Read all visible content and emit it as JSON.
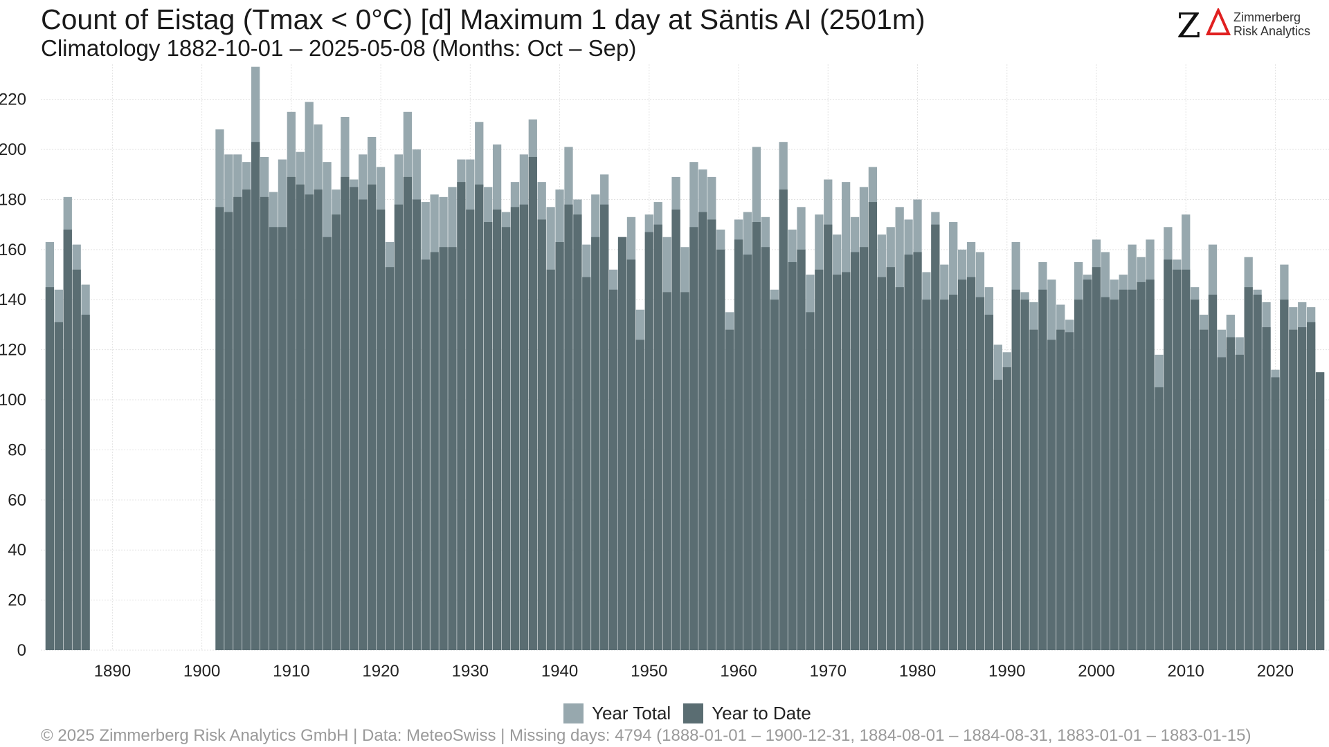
{
  "title": "Count of Eistag (Tmax < 0°C) [d] Maximum 1 day at Säntis  AI (2501m)",
  "subtitle": "Climatology 1882-10-01 – 2025-05-08 (Months: Oct – Sep)",
  "logo": {
    "line1": "Zimmerberg",
    "line2": "Risk Analytics",
    "letter": "Z",
    "mark_color": "#e02020"
  },
  "footer": "©  2025 Zimmerberg Risk Analytics GmbH | Data: MeteoSwiss | Missing days: 4794 (1888-01-01 – 1900-12-31, 1884-08-01 – 1884-08-31, 1883-01-01 – 1883-01-15)",
  "legend": [
    {
      "label": "Year Total",
      "color": "#97a8ae"
    },
    {
      "label": "Year to Date",
      "color": "#5a6d72"
    }
  ],
  "chart_data": {
    "type": "bar",
    "grid": true,
    "legend_position": "bottom",
    "xlim": [
      1882,
      2026
    ],
    "ylim": [
      0,
      234
    ],
    "x_ticks": [
      1890,
      1900,
      1910,
      1920,
      1930,
      1940,
      1950,
      1960,
      1970,
      1980,
      1990,
      2000,
      2010,
      2020
    ],
    "y_ticks": [
      0,
      20,
      40,
      60,
      80,
      100,
      120,
      140,
      160,
      180,
      200,
      220
    ],
    "years": [
      1883,
      1884,
      1885,
      1886,
      1887,
      1902,
      1903,
      1904,
      1905,
      1906,
      1907,
      1908,
      1909,
      1910,
      1911,
      1912,
      1913,
      1914,
      1915,
      1916,
      1917,
      1918,
      1919,
      1920,
      1921,
      1922,
      1923,
      1924,
      1925,
      1926,
      1927,
      1928,
      1929,
      1930,
      1931,
      1932,
      1933,
      1934,
      1935,
      1936,
      1937,
      1938,
      1939,
      1940,
      1941,
      1942,
      1943,
      1944,
      1945,
      1946,
      1947,
      1948,
      1949,
      1950,
      1951,
      1952,
      1953,
      1954,
      1955,
      1956,
      1957,
      1958,
      1959,
      1960,
      1961,
      1962,
      1963,
      1964,
      1965,
      1966,
      1967,
      1968,
      1969,
      1970,
      1971,
      1972,
      1973,
      1974,
      1975,
      1976,
      1977,
      1978,
      1979,
      1980,
      1981,
      1982,
      1983,
      1984,
      1985,
      1986,
      1987,
      1988,
      1989,
      1990,
      1991,
      1992,
      1993,
      1994,
      1995,
      1996,
      1997,
      1998,
      1999,
      2000,
      2001,
      2002,
      2003,
      2004,
      2005,
      2006,
      2007,
      2008,
      2009,
      2010,
      2011,
      2012,
      2013,
      2014,
      2015,
      2016,
      2017,
      2018,
      2019,
      2020,
      2021,
      2022,
      2023,
      2024,
      2025
    ],
    "series": [
      {
        "name": "Year Total",
        "values": [
          163,
          144,
          181,
          162,
          146,
          208,
          198,
          198,
          195,
          233,
          197,
          183,
          196,
          215,
          199,
          219,
          210,
          195,
          184,
          213,
          188,
          198,
          205,
          193,
          163,
          198,
          215,
          200,
          179,
          182,
          181,
          185,
          196,
          196,
          211,
          185,
          202,
          175,
          187,
          198,
          212,
          187,
          177,
          184,
          201,
          180,
          162,
          182,
          190,
          152,
          165,
          173,
          136,
          174,
          179,
          165,
          189,
          161,
          195,
          192,
          189,
          168,
          135,
          172,
          175,
          201,
          173,
          144,
          203,
          168,
          177,
          150,
          174,
          188,
          166,
          187,
          173,
          185,
          193,
          166,
          169,
          177,
          172,
          180,
          151,
          175,
          154,
          171,
          160,
          163,
          159,
          145,
          122,
          119,
          163,
          143,
          139,
          155,
          148,
          138,
          132,
          155,
          150,
          164,
          159,
          148,
          150,
          162,
          157,
          164,
          118,
          169,
          156,
          174,
          145,
          134,
          162,
          128,
          134,
          125,
          157,
          144,
          139,
          112,
          154,
          137,
          139,
          137,
          111
        ]
      },
      {
        "name": "Year to Date",
        "values": [
          145,
          131,
          168,
          152,
          134,
          177,
          175,
          181,
          184,
          203,
          181,
          169,
          169,
          189,
          186,
          182,
          184,
          165,
          174,
          189,
          185,
          180,
          186,
          176,
          153,
          178,
          189,
          180,
          156,
          159,
          161,
          161,
          187,
          176,
          186,
          171,
          176,
          169,
          177,
          178,
          197,
          172,
          152,
          163,
          178,
          174,
          149,
          165,
          178,
          144,
          165,
          156,
          124,
          167,
          170,
          143,
          176,
          143,
          169,
          175,
          172,
          160,
          128,
          164,
          158,
          171,
          161,
          140,
          184,
          155,
          160,
          135,
          152,
          170,
          150,
          151,
          159,
          161,
          179,
          149,
          153,
          145,
          158,
          159,
          140,
          170,
          140,
          142,
          148,
          149,
          141,
          134,
          108,
          113,
          144,
          140,
          128,
          144,
          124,
          128,
          127,
          140,
          148,
          153,
          141,
          140,
          144,
          144,
          147,
          148,
          105,
          156,
          152,
          152,
          140,
          128,
          142,
          117,
          125,
          118,
          145,
          142,
          129,
          109,
          140,
          128,
          129,
          131,
          111
        ]
      }
    ]
  }
}
